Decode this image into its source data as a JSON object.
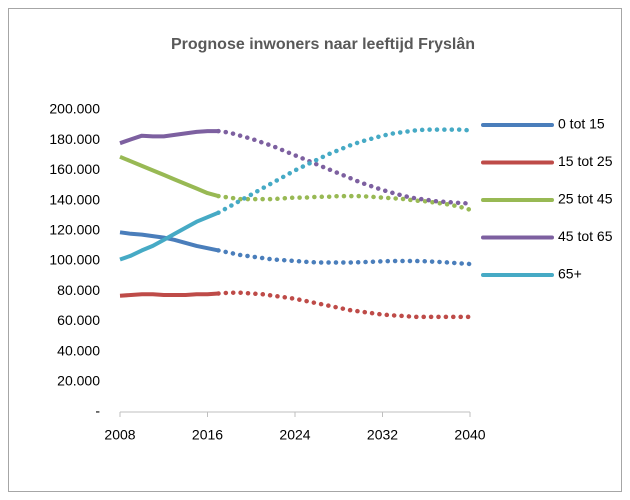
{
  "chart_data": {
    "type": "line",
    "title": "Prognose inwoners naar leeftijd Fryslân",
    "x": [
      2008,
      2009,
      2010,
      2011,
      2012,
      2013,
      2014,
      2015,
      2016,
      2017,
      2018,
      2019,
      2020,
      2021,
      2022,
      2023,
      2024,
      2025,
      2026,
      2027,
      2028,
      2029,
      2030,
      2031,
      2032,
      2033,
      2034,
      2035,
      2036,
      2037,
      2038,
      2039,
      2040
    ],
    "xlim": [
      2008,
      2040
    ],
    "xticks": [
      2008,
      2016,
      2024,
      2032,
      2040
    ],
    "ylim": [
      0,
      200000
    ],
    "yticks": [
      {
        "value": 0,
        "label": "-"
      },
      {
        "value": 20000,
        "label": "20.000"
      },
      {
        "value": 40000,
        "label": "40.000"
      },
      {
        "value": 60000,
        "label": "60.000"
      },
      {
        "value": 80000,
        "label": "80.000"
      },
      {
        "value": 100000,
        "label": "100.000"
      },
      {
        "value": 120000,
        "label": "120.000"
      },
      {
        "value": 140000,
        "label": "140.000"
      },
      {
        "value": 160000,
        "label": "160.000"
      },
      {
        "value": 180000,
        "label": "180.000"
      },
      {
        "value": 200000,
        "label": "200.000"
      }
    ],
    "dotted_from": 2017,
    "legend": "right",
    "series": [
      {
        "name": "0 tot 15",
        "color": "#4a7ebb",
        "values": [
          119000,
          118000,
          117500,
          116500,
          115500,
          114000,
          112000,
          110000,
          108500,
          107000,
          105500,
          104000,
          103000,
          102000,
          101000,
          100500,
          100000,
          99500,
          99000,
          99000,
          99000,
          99000,
          99200,
          99500,
          99800,
          100000,
          100000,
          100000,
          99800,
          99500,
          99000,
          98500,
          98000
        ]
      },
      {
        "name": "15 tot 25",
        "color": "#be4b48",
        "values": [
          77000,
          77500,
          78000,
          78000,
          77500,
          77500,
          77500,
          78000,
          78000,
          78500,
          79000,
          79000,
          78500,
          78000,
          77000,
          76000,
          75000,
          73500,
          72000,
          70500,
          69000,
          67500,
          66500,
          65500,
          64500,
          64000,
          63500,
          63000,
          63000,
          63000,
          63000,
          63000,
          63000
        ]
      },
      {
        "name": "25 tot 45",
        "color": "#98b954",
        "values": [
          169000,
          166000,
          163000,
          160000,
          157000,
          154000,
          151000,
          148000,
          145000,
          143000,
          142000,
          141000,
          141000,
          141000,
          141000,
          141500,
          142000,
          142000,
          142500,
          142500,
          143000,
          143000,
          143000,
          142500,
          142000,
          141500,
          141000,
          140000,
          139500,
          138500,
          137500,
          136000,
          134000
        ]
      },
      {
        "name": "45 tot 65",
        "color": "#7d60a0",
        "values": [
          178000,
          180500,
          183000,
          182500,
          182500,
          183500,
          184500,
          185500,
          186000,
          186000,
          185000,
          183000,
          181000,
          178500,
          176000,
          173000,
          170000,
          167000,
          164000,
          161000,
          158000,
          155000,
          152000,
          149500,
          147000,
          145000,
          143000,
          141500,
          140500,
          139500,
          139000,
          138500,
          138000
        ]
      },
      {
        "name": "65+",
        "color": "#46aac5",
        "values": [
          101000,
          103500,
          107000,
          110000,
          114000,
          118000,
          122000,
          126000,
          129000,
          132000,
          136000,
          140000,
          144000,
          148000,
          152000,
          156000,
          160000,
          163500,
          167000,
          170500,
          173500,
          176500,
          179000,
          181000,
          183000,
          184500,
          185500,
          186500,
          187000,
          187000,
          187000,
          187000,
          186500
        ]
      }
    ]
  }
}
